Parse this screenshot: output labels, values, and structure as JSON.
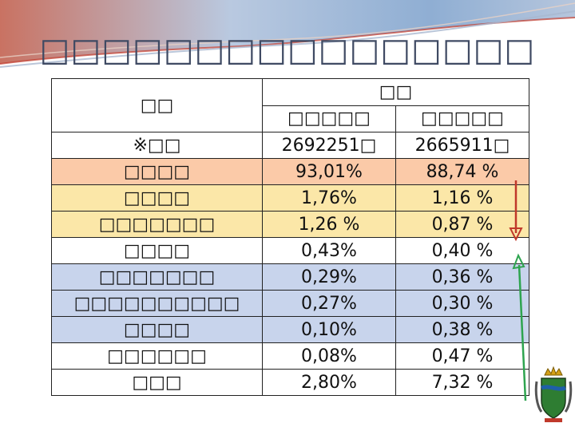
{
  "slide": {
    "title": "□□□□□□□□□□□□□□□□"
  },
  "table": {
    "header_left": "□□",
    "header_group": "□□",
    "year_labels": [
      "□□□□□",
      "□□□□□"
    ],
    "total": {
      "label": "※□□",
      "values": [
        "2692251□",
        "2665911□"
      ]
    },
    "rows": [
      {
        "name": "□□□□",
        "v1": "93,01%",
        "v2": "88,74 %"
      },
      {
        "name": "□□□□",
        "v1": "1,76%",
        "v2": "1,16 %"
      },
      {
        "name": "□□□□□□□",
        "v1": "1,26 %",
        "v2": "0,87 %"
      },
      {
        "name": "□□□□",
        "v1": "0,43%",
        "v2": "0,40 %"
      },
      {
        "name": "□□□□□□□",
        "v1": "0,29%",
        "v2": "0,36 %"
      },
      {
        "name": "□□□□□□□□□□",
        "v1": "0,27%",
        "v2": "0,30 %"
      },
      {
        "name": "□□□□",
        "v1": "0,10%",
        "v2": "0,38 %"
      },
      {
        "name": "□□□□□□",
        "v1": "0,08%",
        "v2": "0,47 %"
      },
      {
        "name": "□□□",
        "v1": "2,80%",
        "v2": "7,32 %"
      }
    ]
  },
  "colors": {
    "row_orange": "#fbcaa8",
    "row_yellow": "#fbe7a8",
    "row_blue": "#c8d4ec",
    "arrow_down": "#c0392b",
    "arrow_up": "#2ea44f",
    "title": "#3f4a63"
  },
  "icons": {
    "emblem": "coat-of-arms-icon",
    "down_arrow": "arrow-down-icon",
    "up_arrow": "arrow-up-icon"
  }
}
